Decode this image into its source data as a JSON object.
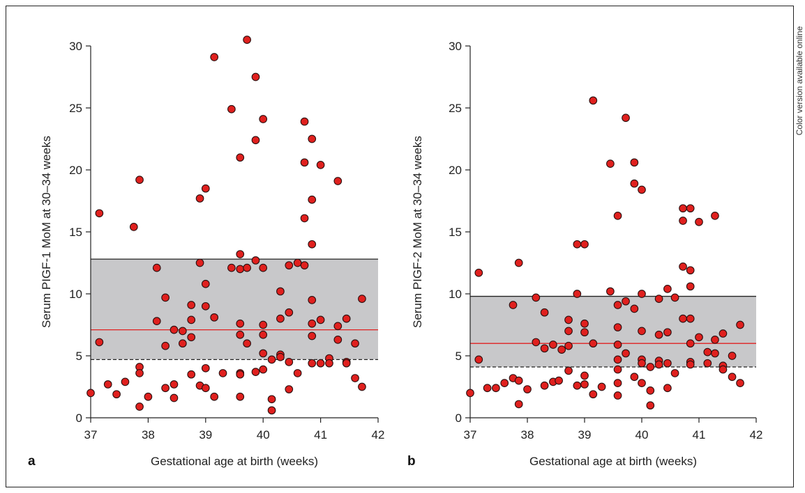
{
  "side_note": "Color version available online",
  "colors": {
    "point_fill": "#e0201e",
    "point_stroke": "#2a1010",
    "band_fill": "#c8c8ca",
    "median_line": "#e02020",
    "axis": "#222222"
  },
  "chart_data": [
    {
      "type": "scatter",
      "panel_label": "a",
      "xlabel": "Gestational age at birth (weeks)",
      "ylabel": "Serum PIGF-1 MoM at 30–34 weeks",
      "xlim": [
        37,
        42
      ],
      "ylim": [
        0,
        30
      ],
      "xticks": [
        37,
        38,
        39,
        40,
        41,
        42
      ],
      "yticks": [
        0,
        5,
        10,
        15,
        20,
        25,
        30
      ],
      "reference_band": {
        "upper": 12.8,
        "median": 7.1,
        "lower": 4.7
      },
      "points": [
        [
          37.0,
          2.0
        ],
        [
          37.15,
          16.5
        ],
        [
          37.15,
          6.1
        ],
        [
          37.3,
          2.7
        ],
        [
          37.45,
          1.9
        ],
        [
          37.6,
          2.9
        ],
        [
          37.75,
          15.4
        ],
        [
          37.85,
          19.2
        ],
        [
          37.85,
          4.1
        ],
        [
          37.85,
          3.6
        ],
        [
          37.85,
          0.9
        ],
        [
          38.0,
          1.7
        ],
        [
          38.15,
          12.1
        ],
        [
          38.15,
          7.8
        ],
        [
          38.3,
          9.7
        ],
        [
          38.3,
          5.8
        ],
        [
          38.3,
          2.4
        ],
        [
          38.45,
          7.1
        ],
        [
          38.45,
          2.7
        ],
        [
          38.45,
          1.6
        ],
        [
          38.6,
          7.0
        ],
        [
          38.6,
          6.0
        ],
        [
          38.75,
          9.1
        ],
        [
          38.75,
          7.9
        ],
        [
          38.75,
          6.5
        ],
        [
          38.75,
          3.5
        ],
        [
          38.9,
          17.7
        ],
        [
          38.9,
          12.5
        ],
        [
          38.9,
          2.6
        ],
        [
          39.0,
          18.5
        ],
        [
          39.0,
          10.8
        ],
        [
          39.0,
          9.0
        ],
        [
          39.0,
          4.0
        ],
        [
          39.0,
          2.4
        ],
        [
          39.15,
          29.1
        ],
        [
          39.15,
          8.1
        ],
        [
          39.15,
          1.7
        ],
        [
          39.3,
          3.6
        ],
        [
          39.45,
          24.9
        ],
        [
          39.45,
          12.1
        ],
        [
          39.6,
          21.0
        ],
        [
          39.6,
          13.2
        ],
        [
          39.6,
          12.0
        ],
        [
          39.6,
          7.6
        ],
        [
          39.6,
          6.7
        ],
        [
          39.6,
          3.6
        ],
        [
          39.6,
          3.5
        ],
        [
          39.6,
          1.7
        ],
        [
          39.72,
          30.5
        ],
        [
          39.72,
          12.1
        ],
        [
          39.72,
          6.0
        ],
        [
          39.87,
          27.5
        ],
        [
          39.87,
          22.4
        ],
        [
          39.87,
          12.7
        ],
        [
          39.87,
          3.7
        ],
        [
          40.0,
          24.1
        ],
        [
          40.0,
          12.1
        ],
        [
          40.0,
          7.5
        ],
        [
          40.0,
          6.7
        ],
        [
          40.0,
          5.2
        ],
        [
          40.0,
          3.9
        ],
        [
          40.15,
          4.7
        ],
        [
          40.15,
          1.5
        ],
        [
          40.15,
          0.6
        ],
        [
          40.3,
          10.2
        ],
        [
          40.3,
          8.0
        ],
        [
          40.3,
          5.1
        ],
        [
          40.3,
          4.9
        ],
        [
          40.45,
          12.3
        ],
        [
          40.45,
          8.5
        ],
        [
          40.45,
          4.5
        ],
        [
          40.45,
          2.3
        ],
        [
          40.6,
          12.5
        ],
        [
          40.6,
          3.6
        ],
        [
          40.72,
          23.9
        ],
        [
          40.72,
          20.6
        ],
        [
          40.72,
          16.1
        ],
        [
          40.72,
          12.3
        ],
        [
          40.85,
          22.5
        ],
        [
          40.85,
          17.6
        ],
        [
          40.85,
          14.0
        ],
        [
          40.85,
          9.5
        ],
        [
          40.85,
          7.6
        ],
        [
          40.85,
          6.6
        ],
        [
          40.85,
          4.4
        ],
        [
          41.0,
          20.4
        ],
        [
          41.0,
          7.9
        ],
        [
          41.0,
          4.4
        ],
        [
          41.15,
          4.8
        ],
        [
          41.15,
          4.4
        ],
        [
          41.3,
          19.1
        ],
        [
          41.3,
          7.4
        ],
        [
          41.3,
          6.3
        ],
        [
          41.45,
          8.0
        ],
        [
          41.45,
          4.5
        ],
        [
          41.45,
          4.4
        ],
        [
          41.6,
          6.0
        ],
        [
          41.6,
          3.2
        ],
        [
          41.72,
          9.6
        ],
        [
          41.72,
          2.5
        ]
      ]
    },
    {
      "type": "scatter",
      "panel_label": "b",
      "xlabel": "Gestational age at birth (weeks)",
      "ylabel": "Serum PIGF-2 MoM at 30–34 weeks",
      "xlim": [
        37,
        42
      ],
      "ylim": [
        0,
        30
      ],
      "xticks": [
        37,
        38,
        39,
        40,
        41,
        42
      ],
      "yticks": [
        0,
        5,
        10,
        15,
        20,
        25,
        30
      ],
      "reference_band": {
        "upper": 9.8,
        "median": 6.0,
        "lower": 4.1
      },
      "points": [
        [
          37.0,
          2.0
        ],
        [
          37.15,
          11.7
        ],
        [
          37.15,
          4.7
        ],
        [
          37.3,
          2.4
        ],
        [
          37.45,
          2.4
        ],
        [
          37.6,
          2.8
        ],
        [
          37.75,
          9.1
        ],
        [
          37.75,
          3.2
        ],
        [
          37.85,
          12.5
        ],
        [
          37.85,
          3.0
        ],
        [
          37.85,
          1.1
        ],
        [
          38.0,
          2.3
        ],
        [
          38.15,
          9.7
        ],
        [
          38.15,
          6.1
        ],
        [
          38.3,
          8.5
        ],
        [
          38.3,
          5.6
        ],
        [
          38.3,
          2.6
        ],
        [
          38.45,
          5.9
        ],
        [
          38.45,
          2.9
        ],
        [
          38.55,
          3.0
        ],
        [
          38.6,
          5.5
        ],
        [
          38.72,
          7.9
        ],
        [
          38.72,
          7.0
        ],
        [
          38.72,
          5.8
        ],
        [
          38.72,
          3.8
        ],
        [
          38.87,
          14.0
        ],
        [
          38.87,
          10.0
        ],
        [
          38.87,
          2.6
        ],
        [
          39.0,
          14.0
        ],
        [
          39.0,
          7.6
        ],
        [
          39.0,
          6.9
        ],
        [
          39.0,
          3.4
        ],
        [
          39.0,
          2.7
        ],
        [
          39.15,
          25.6
        ],
        [
          39.15,
          6.0
        ],
        [
          39.15,
          1.9
        ],
        [
          39.3,
          2.5
        ],
        [
          39.45,
          20.5
        ],
        [
          39.45,
          10.2
        ],
        [
          39.58,
          16.3
        ],
        [
          39.58,
          9.1
        ],
        [
          39.58,
          7.3
        ],
        [
          39.58,
          5.9
        ],
        [
          39.58,
          4.7
        ],
        [
          39.58,
          3.9
        ],
        [
          39.58,
          2.8
        ],
        [
          39.58,
          1.8
        ],
        [
          39.72,
          24.2
        ],
        [
          39.72,
          9.4
        ],
        [
          39.72,
          5.2
        ],
        [
          39.87,
          20.6
        ],
        [
          39.87,
          18.9
        ],
        [
          39.87,
          8.8
        ],
        [
          39.87,
          3.3
        ],
        [
          40.0,
          18.4
        ],
        [
          40.0,
          10.0
        ],
        [
          40.0,
          7.0
        ],
        [
          40.0,
          4.7
        ],
        [
          40.0,
          4.4
        ],
        [
          40.0,
          2.8
        ],
        [
          40.15,
          4.1
        ],
        [
          40.15,
          2.2
        ],
        [
          40.15,
          1.0
        ],
        [
          40.3,
          9.6
        ],
        [
          40.3,
          6.7
        ],
        [
          40.3,
          4.6
        ],
        [
          40.3,
          4.3
        ],
        [
          40.45,
          10.4
        ],
        [
          40.45,
          6.9
        ],
        [
          40.45,
          4.4
        ],
        [
          40.45,
          2.4
        ],
        [
          40.58,
          9.7
        ],
        [
          40.58,
          3.6
        ],
        [
          40.72,
          16.9
        ],
        [
          40.72,
          15.9
        ],
        [
          40.72,
          12.2
        ],
        [
          40.72,
          8.0
        ],
        [
          40.85,
          16.9
        ],
        [
          40.85,
          11.9
        ],
        [
          40.85,
          10.6
        ],
        [
          40.85,
          8.0
        ],
        [
          40.85,
          6.0
        ],
        [
          40.85,
          4.5
        ],
        [
          40.85,
          4.3
        ],
        [
          41.0,
          15.8
        ],
        [
          41.0,
          6.5
        ],
        [
          41.15,
          5.3
        ],
        [
          41.15,
          4.4
        ],
        [
          41.28,
          16.3
        ],
        [
          41.28,
          6.3
        ],
        [
          41.28,
          5.2
        ],
        [
          41.42,
          6.8
        ],
        [
          41.42,
          4.2
        ],
        [
          41.42,
          3.9
        ],
        [
          41.58,
          5.0
        ],
        [
          41.58,
          3.3
        ],
        [
          41.72,
          7.5
        ],
        [
          41.72,
          2.8
        ]
      ]
    }
  ]
}
